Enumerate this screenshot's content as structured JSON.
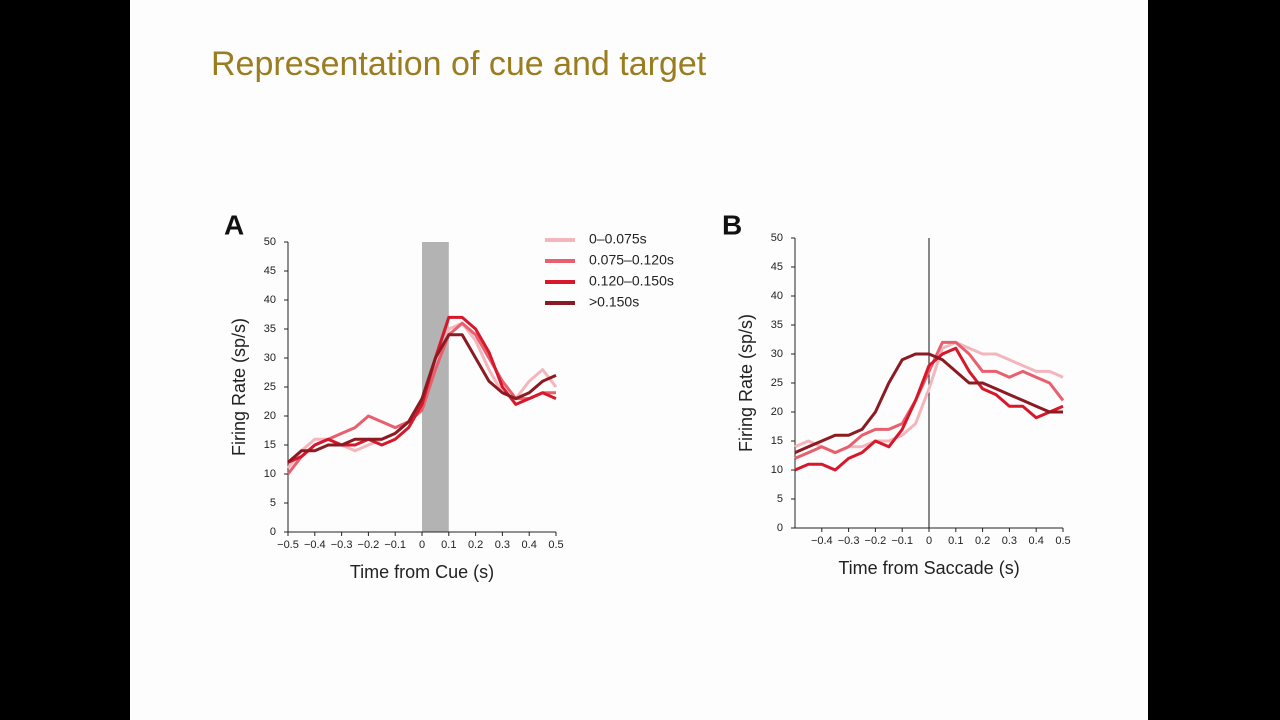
{
  "title": "Representation of cue and target",
  "chart_data": [
    {
      "type": "line",
      "label": "A",
      "xlabel": "Time from Cue (s)",
      "ylabel": "Firing Rate (sp/s)",
      "xlim": [
        -0.5,
        0.5
      ],
      "ylim": [
        0,
        50
      ],
      "xticks": [
        {
          "value": -0.5,
          "label": "−0.5"
        },
        {
          "value": -0.4,
          "label": "−0.4"
        },
        {
          "value": -0.3,
          "label": "−0.3"
        },
        {
          "value": -0.2,
          "label": "−0.2"
        },
        {
          "value": -0.1,
          "label": "−0.1"
        },
        0,
        0.1,
        0.2,
        0.3,
        0.4,
        0.5
      ],
      "yticks": [
        0,
        5,
        10,
        15,
        20,
        25,
        30,
        35,
        40,
        45,
        50
      ],
      "shade": [
        0,
        0.1
      ],
      "shade_color": "#b3b3b3",
      "x": [
        -0.5,
        -0.45,
        -0.4,
        -0.35,
        -0.3,
        -0.25,
        -0.2,
        -0.15,
        -0.1,
        -0.05,
        0,
        0.05,
        0.1,
        0.15,
        0.2,
        0.25,
        0.3,
        0.35,
        0.4,
        0.45,
        0.5
      ],
      "series": [
        {
          "name": "0–0.075s",
          "color": "#f4b6bd",
          "values": [
            11,
            14,
            16,
            16,
            15,
            14,
            15,
            16,
            17,
            19,
            22,
            28,
            35,
            36,
            33,
            28,
            24,
            23,
            26,
            28,
            25
          ]
        },
        {
          "name": "0.075–0.120s",
          "color": "#e8606e",
          "values": [
            10,
            13,
            15,
            16,
            17,
            18,
            20,
            19,
            18,
            19,
            21,
            28,
            34,
            36,
            34,
            30,
            26,
            23,
            23,
            24,
            24
          ]
        },
        {
          "name": "0.120–0.150s",
          "color": "#d7182a",
          "values": [
            12,
            13,
            15,
            16,
            15,
            15,
            16,
            15,
            16,
            18,
            22,
            30,
            37,
            37,
            35,
            31,
            25,
            22,
            23,
            24,
            23
          ]
        },
        {
          "name": ">0.150s",
          "color": "#8b1a22",
          "values": [
            12,
            14,
            14,
            15,
            15,
            16,
            16,
            16,
            17,
            19,
            23,
            30,
            34,
            34,
            30,
            26,
            24,
            23,
            24,
            26,
            27
          ]
        }
      ]
    },
    {
      "type": "line",
      "label": "B",
      "xlabel": "Time from Saccade (s)",
      "ylabel": "Firing Rate (sp/s)",
      "xlim": [
        -0.5,
        0.5
      ],
      "ylim": [
        0,
        50
      ],
      "xticks": [
        {
          "value": -0.4,
          "label": "−0.4"
        },
        {
          "value": -0.3,
          "label": "−0.3"
        },
        {
          "value": -0.2,
          "label": "−0.2"
        },
        {
          "value": -0.1,
          "label": "−0.1"
        },
        0,
        0.1,
        0.2,
        0.3,
        0.4,
        0.5
      ],
      "yticks": [
        0,
        5,
        10,
        15,
        20,
        25,
        30,
        35,
        40,
        45,
        50
      ],
      "vline": 0,
      "x": [
        -0.5,
        -0.45,
        -0.4,
        -0.35,
        -0.3,
        -0.25,
        -0.2,
        -0.15,
        -0.1,
        -0.05,
        0,
        0.05,
        0.1,
        0.15,
        0.2,
        0.25,
        0.3,
        0.35,
        0.4,
        0.45,
        0.5
      ],
      "series": [
        {
          "color": "#f4b6bd",
          "values": [
            14,
            15,
            14,
            13,
            14,
            14,
            15,
            15,
            16,
            18,
            24,
            31,
            32,
            31,
            30,
            30,
            29,
            28,
            27,
            27,
            26
          ]
        },
        {
          "color": "#e8606e",
          "values": [
            12,
            13,
            14,
            13,
            14,
            16,
            17,
            17,
            18,
            22,
            27,
            32,
            32,
            30,
            27,
            27,
            26,
            27,
            26,
            25,
            22
          ]
        },
        {
          "color": "#d7182a",
          "values": [
            10,
            11,
            11,
            10,
            12,
            13,
            15,
            14,
            17,
            22,
            28,
            30,
            31,
            27,
            24,
            23,
            21,
            21,
            19,
            20,
            21
          ]
        },
        {
          "color": "#8b1a22",
          "values": [
            13,
            14,
            15,
            16,
            16,
            17,
            20,
            25,
            29,
            30,
            30,
            29,
            27,
            25,
            25,
            24,
            23,
            22,
            21,
            20,
            20
          ]
        }
      ]
    }
  ]
}
